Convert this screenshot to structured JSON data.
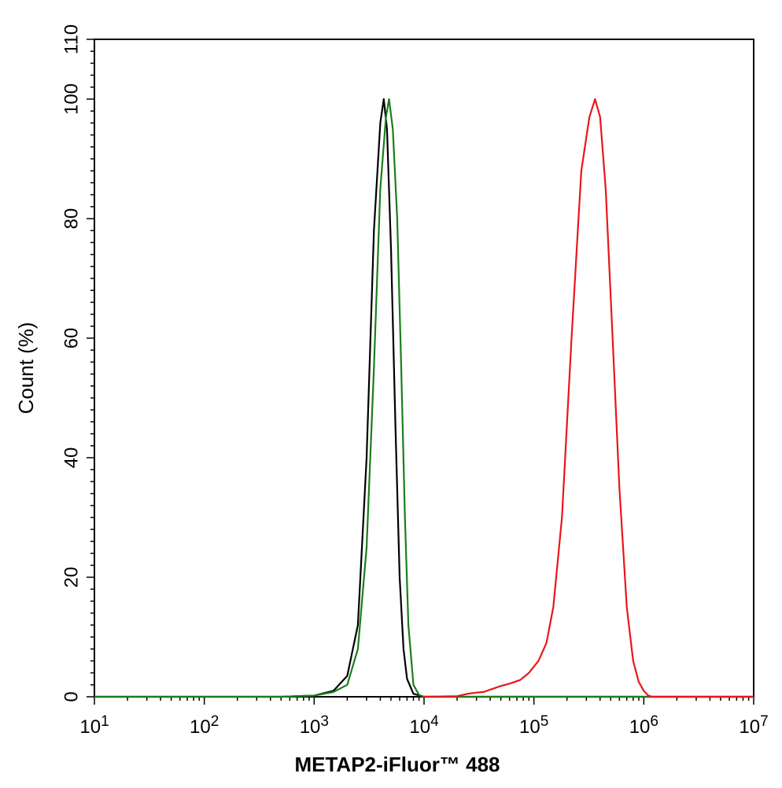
{
  "chart_data": {
    "type": "line",
    "title": "",
    "xlabel": "METAP2-iFluor™ 488",
    "ylabel": "Count  (%)",
    "x_scale": "log",
    "xlim": [
      10,
      10000000
    ],
    "ylim": [
      0,
      110
    ],
    "x_tick_values": [
      10,
      100,
      1000,
      10000,
      100000,
      1000000,
      10000000
    ],
    "x_tick_bases": [
      "10",
      "10",
      "10",
      "10",
      "10",
      "10",
      "10"
    ],
    "x_tick_exps": [
      "1",
      "2",
      "3",
      "4",
      "5",
      "6",
      "7"
    ],
    "y_ticks": [
      0,
      20,
      40,
      60,
      80,
      100,
      110
    ],
    "y_tick_labels": [
      "0",
      "20",
      "40",
      "60",
      "80",
      "100",
      "110"
    ],
    "grid": false,
    "legend": "none",
    "series": [
      {
        "color": "#000000",
        "points": [
          [
            10,
            0
          ],
          [
            500,
            0
          ],
          [
            1000,
            0.2
          ],
          [
            1500,
            1.0
          ],
          [
            2000,
            3.5
          ],
          [
            2500,
            12
          ],
          [
            3000,
            40
          ],
          [
            3500,
            78
          ],
          [
            4000,
            96
          ],
          [
            4300,
            100
          ],
          [
            4600,
            95
          ],
          [
            5000,
            75
          ],
          [
            5500,
            45
          ],
          [
            6000,
            20
          ],
          [
            6500,
            8
          ],
          [
            7000,
            3
          ],
          [
            8000,
            0.5
          ],
          [
            10000,
            0
          ],
          [
            10000000,
            0
          ]
        ]
      },
      {
        "color": "#1a7f1a",
        "points": [
          [
            10,
            0
          ],
          [
            500,
            0
          ],
          [
            1000,
            0.2
          ],
          [
            1500,
            0.8
          ],
          [
            2000,
            2.0
          ],
          [
            2500,
            8
          ],
          [
            3000,
            25
          ],
          [
            3500,
            55
          ],
          [
            4000,
            85
          ],
          [
            4500,
            97
          ],
          [
            4800,
            100
          ],
          [
            5200,
            95
          ],
          [
            5700,
            80
          ],
          [
            6200,
            55
          ],
          [
            6700,
            30
          ],
          [
            7200,
            12
          ],
          [
            8000,
            2
          ],
          [
            9000,
            0.3
          ],
          [
            10000,
            0
          ],
          [
            10000000,
            0
          ]
        ]
      },
      {
        "color": "#e8161b",
        "points": [
          [
            10000,
            0
          ],
          [
            20000,
            0.1
          ],
          [
            25000,
            0.5
          ],
          [
            30000,
            0.7
          ],
          [
            35000,
            0.8
          ],
          [
            40000,
            1.2
          ],
          [
            50000,
            1.8
          ],
          [
            60000,
            2.2
          ],
          [
            75000,
            2.8
          ],
          [
            90000,
            4.0
          ],
          [
            110000,
            6.0
          ],
          [
            130000,
            9.0
          ],
          [
            150000,
            15
          ],
          [
            180000,
            30
          ],
          [
            220000,
            60
          ],
          [
            270000,
            88
          ],
          [
            320000,
            97
          ],
          [
            360000,
            100
          ],
          [
            400000,
            97
          ],
          [
            450000,
            85
          ],
          [
            520000,
            60
          ],
          [
            600000,
            35
          ],
          [
            700000,
            15
          ],
          [
            800000,
            6
          ],
          [
            900000,
            2.5
          ],
          [
            1000000,
            1.0
          ],
          [
            1100000,
            0.2
          ],
          [
            1200000,
            0
          ],
          [
            10000000,
            0
          ]
        ]
      }
    ]
  }
}
